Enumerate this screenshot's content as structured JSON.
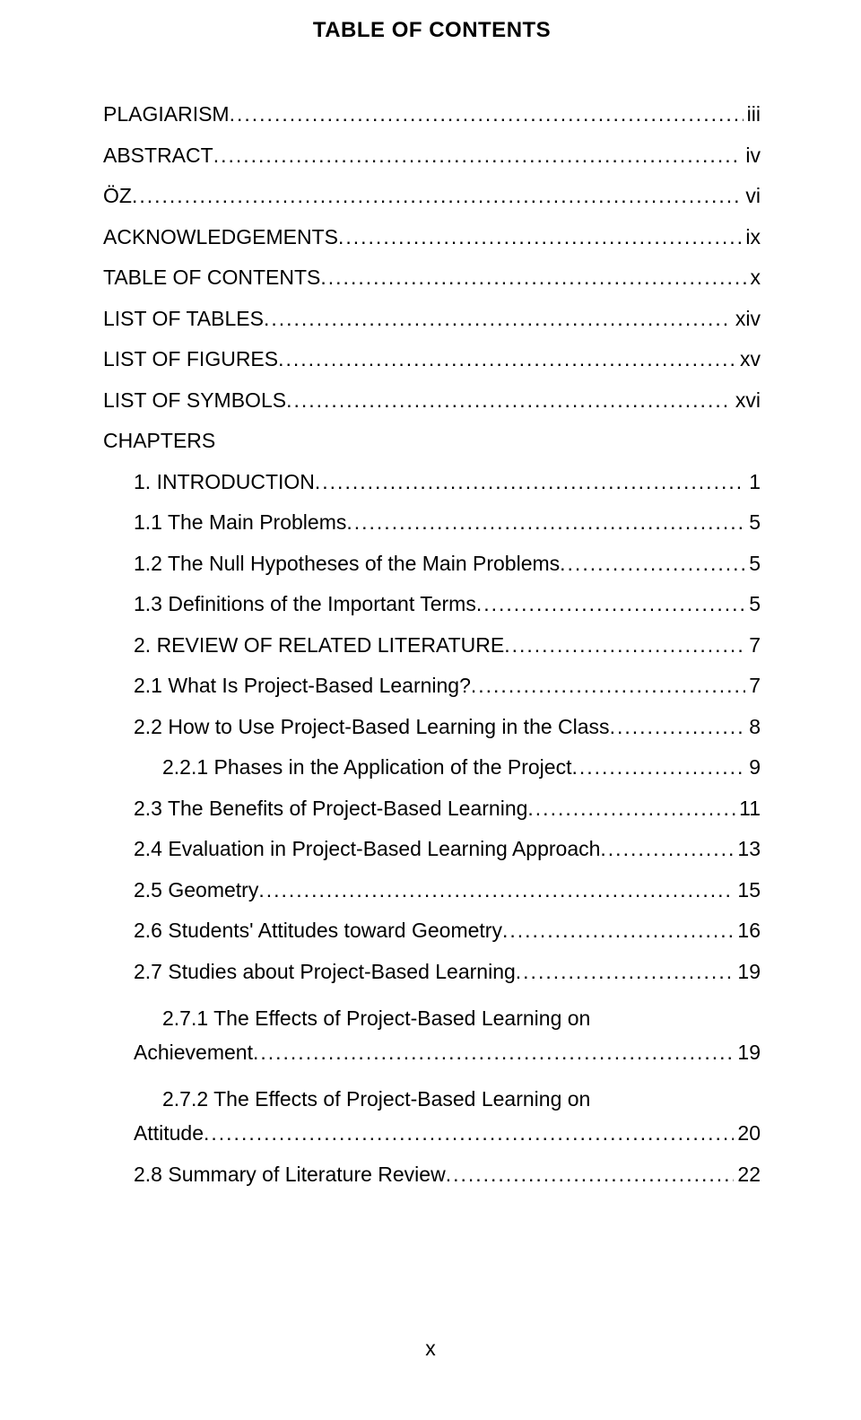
{
  "title": "TABLE OF CONTENTS",
  "page_number": "x",
  "colors": {
    "background": "#ffffff",
    "text": "#000000"
  },
  "typography": {
    "font_family": "Verdana",
    "title_fontsize_pt": 18,
    "body_fontsize_pt": 17
  },
  "toc": {
    "type": "table-of-contents",
    "leader_char": ".",
    "entries": [
      {
        "label": "PLAGIARISM",
        "page": "iii",
        "indent": 0
      },
      {
        "label": "ABSTRACT",
        "page": "iv",
        "indent": 0
      },
      {
        "label": "ÖZ",
        "page": "vi",
        "indent": 0
      },
      {
        "label": "ACKNOWLEDGEMENTS",
        "page": "ix",
        "indent": 0
      },
      {
        "label": "TABLE OF CONTENTS",
        "page": "x",
        "indent": 0
      },
      {
        "label": "LIST OF TABLES",
        "page": "xiv",
        "indent": 0
      },
      {
        "label": "LIST OF FIGURES",
        "page": "xv",
        "indent": 0
      },
      {
        "label": "LIST OF SYMBOLS",
        "page": "xvi",
        "indent": 0
      },
      {
        "label": "CHAPTERS",
        "indent": 0,
        "no_page": true
      },
      {
        "label": "1. INTRODUCTION",
        "page": "1",
        "indent": 1
      },
      {
        "label": "1.1 The Main Problems",
        "page": "5",
        "indent": 1
      },
      {
        "label": "1.2 The Null Hypotheses of the Main Problems",
        "page": "5",
        "indent": 1
      },
      {
        "label": "1.3 Definitions of the Important Terms",
        "page": "5",
        "indent": 1
      },
      {
        "label": "2. REVIEW OF RELATED LITERATURE",
        "page": "7",
        "indent": 1
      },
      {
        "label": "2.1 What Is Project-Based Learning?",
        "page": "7",
        "indent": 1
      },
      {
        "label": "2.2 How to Use Project-Based Learning in the Class",
        "page": "8",
        "indent": 1
      },
      {
        "label": "2.2.1 Phases in the Application of the Project",
        "page": "9",
        "indent": 2
      },
      {
        "label": "2.3 The Benefits of Project-Based Learning",
        "page": "11",
        "indent": 1
      },
      {
        "label": "2.4 Evaluation in Project-Based Learning Approach",
        "page": "13",
        "indent": 1
      },
      {
        "label": "2.5 Geometry",
        "page": "15",
        "indent": 1
      },
      {
        "label": "2.6 Students' Attitudes toward Geometry",
        "page": "16",
        "indent": 1
      },
      {
        "label": "2.7 Studies about Project-Based Learning",
        "page": "19",
        "indent": 1
      },
      {
        "label_line1": "2.7.1 The Effects of Project-Based Learning on",
        "label_line2": "Achievement",
        "page": "19",
        "indent": 2,
        "wrap": true
      },
      {
        "label_line1": "2.7.2 The Effects of Project-Based Learning on",
        "label_line2": "Attitude",
        "page": "20",
        "indent": 2,
        "wrap": true
      },
      {
        "label": "2.8 Summary of Literature Review",
        "page": "22",
        "indent": 1
      }
    ]
  }
}
